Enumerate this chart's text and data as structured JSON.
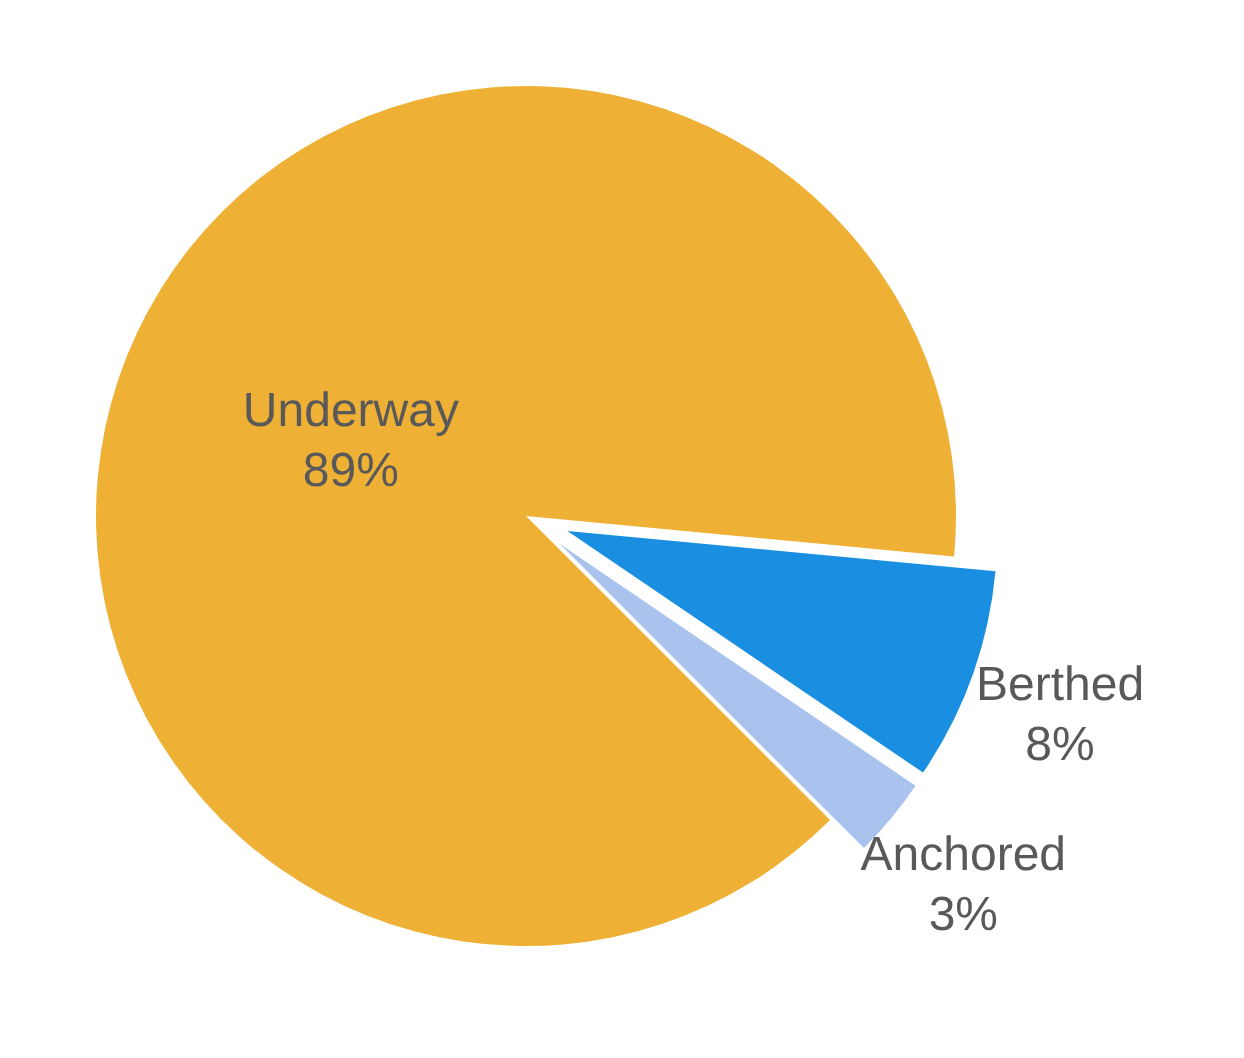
{
  "chart_data": {
    "type": "pie",
    "categories": [
      "Underway",
      "Berthed",
      "Anchored"
    ],
    "values": [
      89,
      8,
      3
    ],
    "value_labels": [
      "89%",
      "8%",
      "3%"
    ],
    "colors": [
      "#eeb136",
      "#1a8ee0",
      "#a9c3ee"
    ]
  }
}
